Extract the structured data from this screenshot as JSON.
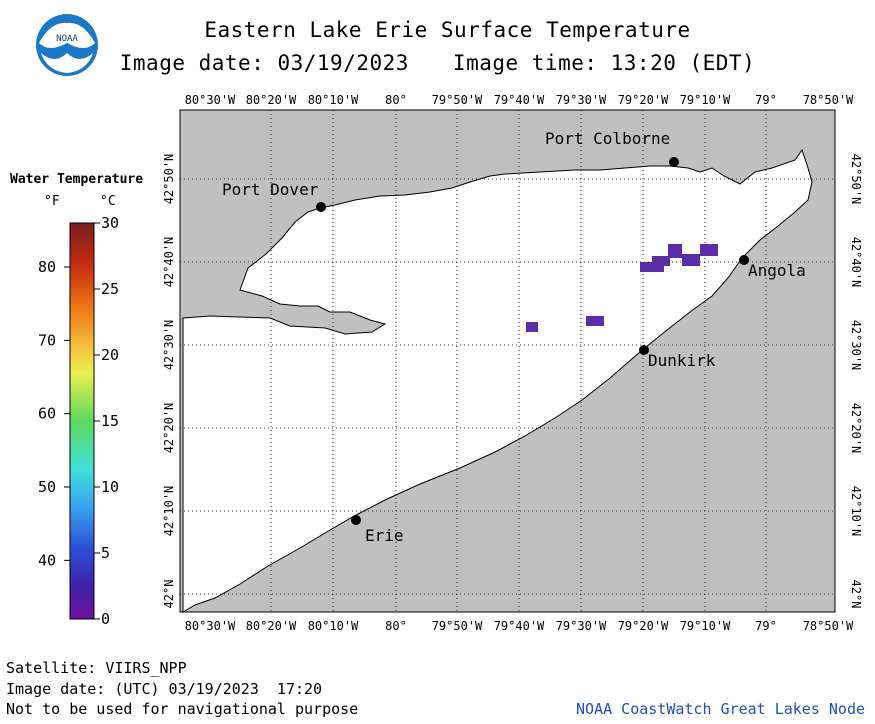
{
  "header": {
    "title": "Eastern Lake Erie Surface Temperature",
    "image_date_label": "Image date: 03/19/2023",
    "image_time_label": "Image time: 13:20 (EDT)"
  },
  "logo": {
    "text": "NOAA"
  },
  "legend": {
    "title": "Water Temperature",
    "unit_f": "°F",
    "unit_c": "°C",
    "f_ticks": [
      "80",
      "70",
      "60",
      "50",
      "40"
    ],
    "c_ticks": [
      "30",
      "25",
      "20",
      "15",
      "10",
      "5",
      "0"
    ],
    "colors": [
      "#7a1f1f",
      "#d83a12",
      "#f08a1a",
      "#f5c640",
      "#e8f050",
      "#5cd85c",
      "#40e0d8",
      "#3aa0f0",
      "#2b50d8",
      "#4020a8",
      "#7010a0"
    ]
  },
  "map": {
    "lon_labels": [
      "80°30'W",
      "80°20'W",
      "80°10'W",
      "80°",
      "79°50'W",
      "79°40'W",
      "79°30'W",
      "79°20'W",
      "79°10'W",
      "79°",
      "78°50'W"
    ],
    "lat_labels": [
      "42°50'N",
      "42°40'N",
      "42°30'N",
      "42°20'N",
      "42°10'N",
      "42°N"
    ],
    "land_color": "#c0c0c0",
    "water_color": "#ffffff",
    "observed_color": "#5a2ca8",
    "cities": {
      "port_colborne": "Port Colborne",
      "port_dover": "Port Dover",
      "angola": "Angola",
      "dunkirk": "Dunkirk",
      "erie": "Erie"
    }
  },
  "footer": {
    "satellite": "Satellite: VIIRS_NPP",
    "utc_date": "Image date: (UTC) 03/19/2023  17:20",
    "disclaimer": "Not to be used for navigational purpose",
    "credit": "NOAA CoastWatch Great Lakes Node"
  }
}
